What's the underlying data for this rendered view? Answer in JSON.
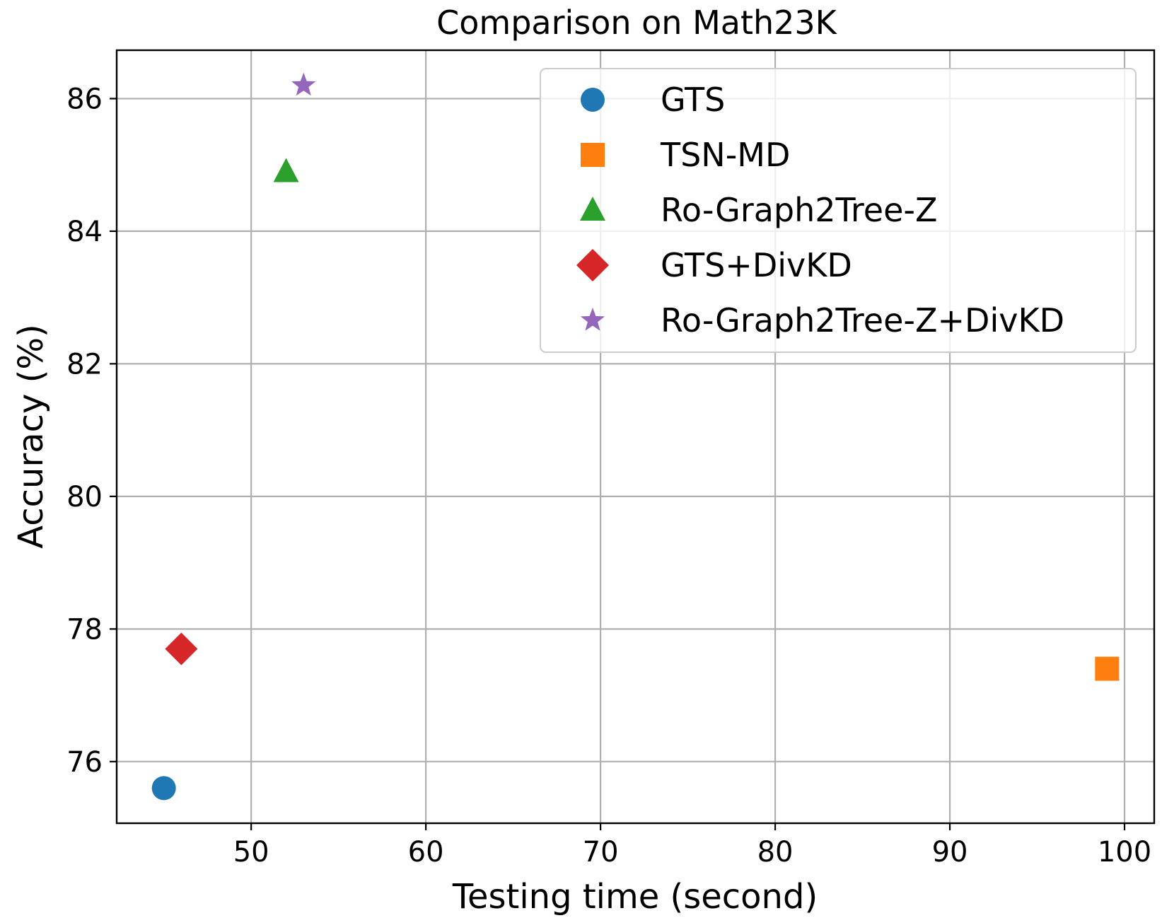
{
  "chart_data": {
    "type": "scatter",
    "title": "Comparison on Math23K",
    "xlabel": "Testing time (second)",
    "ylabel": "Accuracy (%)",
    "xlim": [
      42.3,
      101.7
    ],
    "ylim": [
      75.07,
      86.73
    ],
    "xticks": [
      50,
      60,
      70,
      80,
      90,
      100
    ],
    "yticks": [
      76,
      78,
      80,
      82,
      84,
      86
    ],
    "grid": true,
    "legend_position": "top-right",
    "series": [
      {
        "name": "GTS",
        "marker": "circle",
        "color": "#1f77b4",
        "x": 45,
        "y": 75.6
      },
      {
        "name": "TSN-MD",
        "marker": "square",
        "color": "#ff7f0e",
        "x": 99,
        "y": 77.4
      },
      {
        "name": "Ro-Graph2Tree-Z",
        "marker": "triangle",
        "color": "#2ca02c",
        "x": 52,
        "y": 84.9
      },
      {
        "name": "GTS+DivKD",
        "marker": "diamond",
        "color": "#d62728",
        "x": 46,
        "y": 77.7
      },
      {
        "name": "Ro-Graph2Tree-Z+DivKD",
        "marker": "star",
        "color": "#9467bd",
        "x": 53,
        "y": 86.2
      }
    ]
  }
}
